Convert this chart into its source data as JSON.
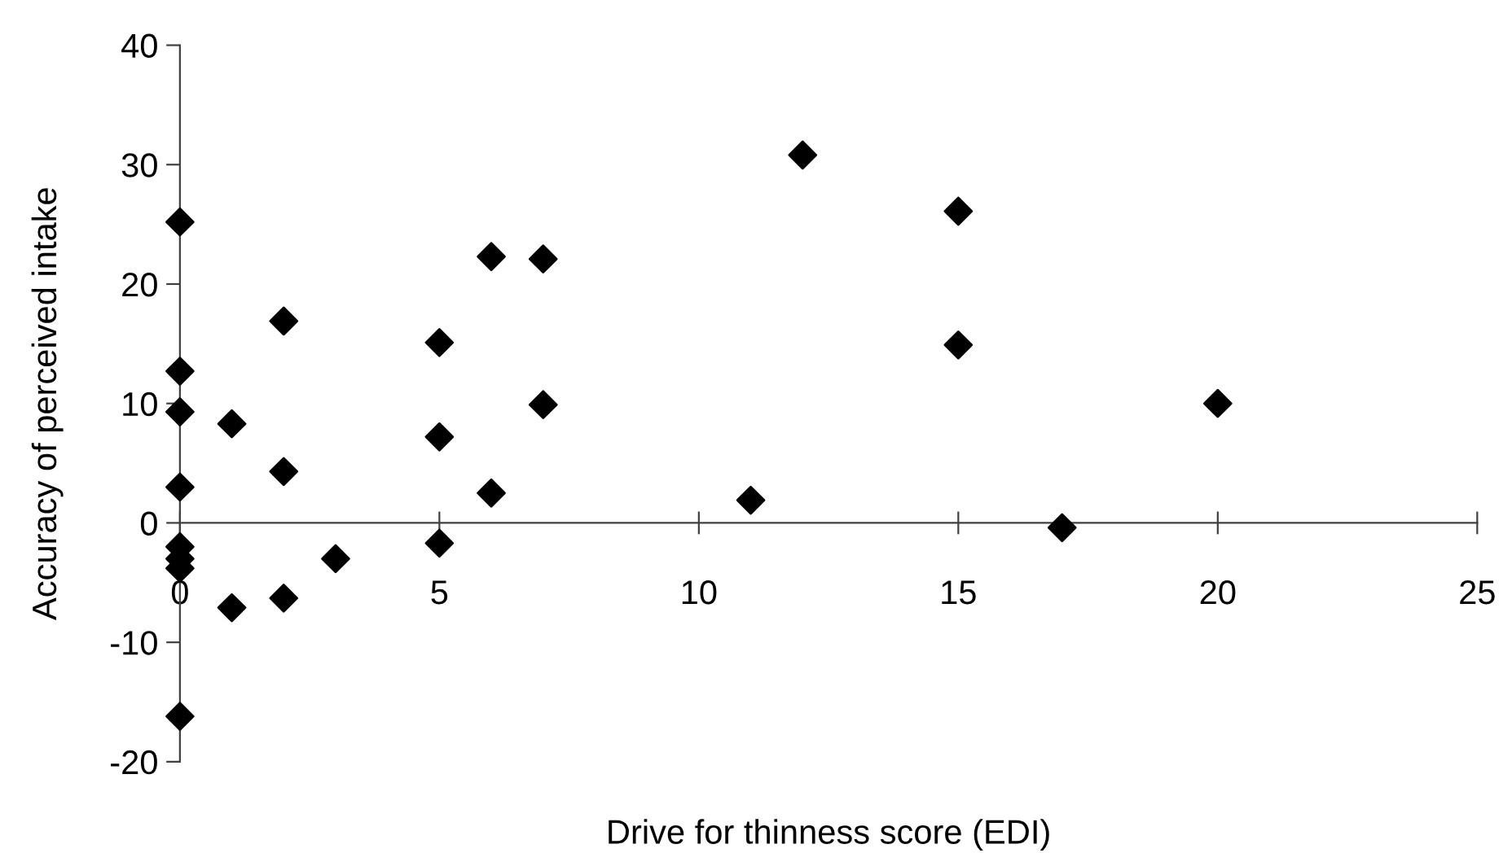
{
  "chart_data": {
    "type": "scatter",
    "xlabel": "Drive for thinness score (EDI)",
    "ylabel": "Accuracy of perceived intake",
    "x": [
      0,
      0,
      0,
      0,
      0,
      0,
      0,
      0,
      1,
      1,
      2,
      2,
      2,
      3,
      5,
      5,
      5,
      6,
      6,
      7,
      7,
      11,
      12,
      15,
      15,
      17,
      20
    ],
    "series": [
      {
        "color": "#000000",
        "values": [
          25.2,
          12.7,
          9.3,
          3.0,
          -2.0,
          -3.0,
          -3.8,
          -16.2,
          8.3,
          -7.1,
          16.9,
          4.3,
          -6.3,
          -3.0,
          15.1,
          7.2,
          -1.7,
          22.3,
          2.5,
          22.1,
          9.9,
          1.9,
          30.8,
          26.1,
          14.9,
          -0.4,
          10.0
        ]
      }
    ],
    "marker": "diamond",
    "grid": false,
    "xlim": [
      0,
      25
    ],
    "xticks": [
      0,
      5,
      10,
      15,
      20,
      25
    ],
    "ylim": [
      -20,
      40
    ],
    "yticks": [
      -20,
      -10,
      0,
      10,
      20,
      30,
      40
    ]
  }
}
